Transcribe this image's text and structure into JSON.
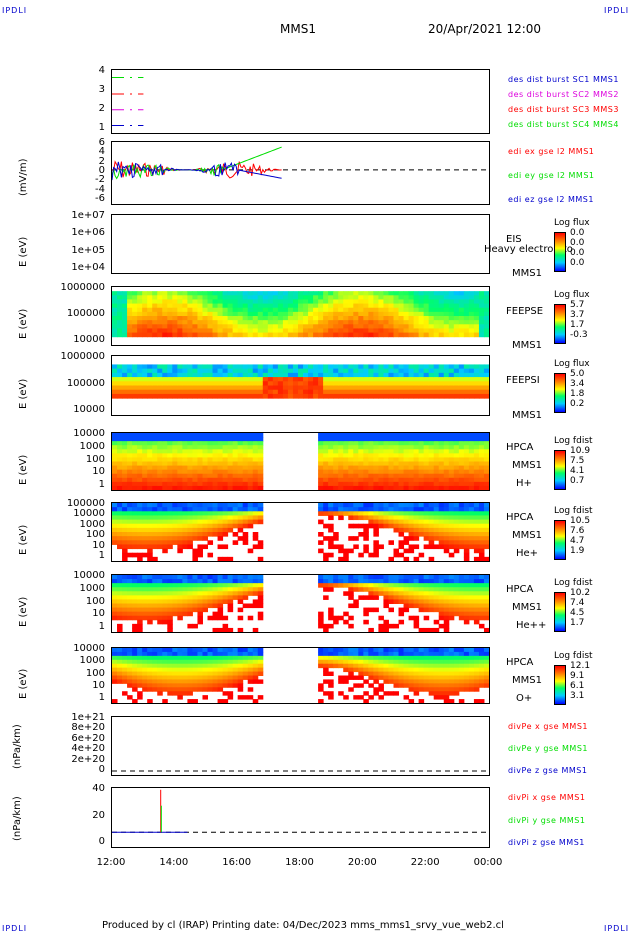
{
  "corner_tag": "IPDLI",
  "header": {
    "spacecraft": "MMS1",
    "datetime": "20/Apr/2021 12:00"
  },
  "footer": {
    "text": "Produced by cl (IRAP)   Printing date: 04/Dec/2023   mms_mms1_srvy_vue_web2.cl"
  },
  "colors": {
    "red": "#ff0000",
    "green": "#00dd00",
    "blue": "#0000cc",
    "magenta": "#dd00dd"
  },
  "chart_data": [
    {
      "type": "line",
      "panel": "availability",
      "yticks": [
        "4",
        "3",
        "2",
        "1"
      ],
      "series": [
        {
          "name": "des dist burst SC1 MMS1",
          "color": "#0000cc"
        },
        {
          "name": "des dist burst SC2 MMS2",
          "color": "#dd00dd"
        },
        {
          "name": "des dist burst SC3 MMS3",
          "color": "#ff0000"
        },
        {
          "name": "des dist burst SC4 MMS4",
          "color": "#00dd00"
        }
      ]
    },
    {
      "type": "line",
      "panel": "edi",
      "ylabel": "(mV/m)",
      "yticks": [
        "6",
        "4",
        "2",
        "0",
        "-2",
        "-4",
        "-6"
      ],
      "series": [
        {
          "name": "edi ex gse l2 MMS1",
          "color": "#ff0000"
        },
        {
          "name": "edi ey gse l2 MMS1",
          "color": "#00dd00"
        },
        {
          "name": "edi ez gse l2 MMS1",
          "color": "#0000cc"
        }
      ]
    },
    {
      "type": "heatmap",
      "panel": "EIS",
      "ylabel": "E (eV)",
      "yticks": [
        "1e+07",
        "1e+06",
        "1e+05",
        "1e+04"
      ],
      "instrument": "EIS",
      "sc": "MMS1",
      "species": "",
      "note": "Heavy electron to",
      "cbar_title": "Log flux",
      "cbar_ticks": [
        "0.0",
        "0.0",
        "0.0",
        "0.0"
      ]
    },
    {
      "type": "heatmap",
      "panel": "FEEPSE",
      "ylabel": "E (eV)",
      "yticks": [
        "1000000",
        "100000",
        "10000"
      ],
      "instrument": "FEEPSE",
      "sc": "MMS1",
      "species": "",
      "cbar_title": "Log flux",
      "cbar_ticks": [
        "5.7",
        "3.7",
        "1.7",
        "-0.3"
      ]
    },
    {
      "type": "heatmap",
      "panel": "FEEPSI",
      "ylabel": "E (eV)",
      "yticks": [
        "1000000",
        "100000",
        "10000"
      ],
      "instrument": "FEEPSI",
      "sc": "MMS1",
      "species": "",
      "cbar_title": "Log flux",
      "cbar_ticks": [
        "5.0",
        "3.4",
        "1.8",
        "0.2"
      ]
    },
    {
      "type": "heatmap",
      "panel": "HPCA_H",
      "ylabel": "E (eV)",
      "yticks": [
        "10000",
        "1000",
        "100",
        "10",
        "1"
      ],
      "instrument": "HPCA",
      "sc": "MMS1",
      "species": "H+",
      "cbar_title": "Log fdist",
      "cbar_ticks": [
        "10.9",
        "7.5",
        "4.1",
        "0.7"
      ]
    },
    {
      "type": "heatmap",
      "panel": "HPCA_He",
      "ylabel": "E (eV)",
      "yticks": [
        "100000",
        "10000",
        "1000",
        "100",
        "10",
        "1"
      ],
      "instrument": "HPCA",
      "sc": "MMS1",
      "species": "He+",
      "cbar_title": "Log fdist",
      "cbar_ticks": [
        "10.5",
        "7.6",
        "4.7",
        "1.9"
      ]
    },
    {
      "type": "heatmap",
      "panel": "HPCA_He2",
      "ylabel": "E (eV)",
      "yticks": [
        "10000",
        "1000",
        "100",
        "10",
        "1"
      ],
      "instrument": "HPCA",
      "sc": "MMS1",
      "species": "He++",
      "cbar_title": "Log fdist",
      "cbar_ticks": [
        "10.2",
        "7.4",
        "4.5",
        "1.7"
      ]
    },
    {
      "type": "heatmap",
      "panel": "HPCA_O",
      "ylabel": "E (eV)",
      "yticks": [
        "10000",
        "1000",
        "100",
        "10",
        "1"
      ],
      "instrument": "HPCA",
      "sc": "MMS1",
      "species": "O+",
      "cbar_title": "Log fdist",
      "cbar_ticks": [
        "12.1",
        "9.1",
        "6.1",
        "3.1"
      ]
    },
    {
      "type": "line",
      "panel": "divPe",
      "ylabel": "(nPa/km)",
      "yticks": [
        "1e+21",
        "8e+20",
        "6e+20",
        "4e+20",
        "2e+20",
        "0"
      ],
      "series": [
        {
          "name": "divPe x gse MMS1",
          "color": "#ff0000"
        },
        {
          "name": "divPe y gse MMS1",
          "color": "#00dd00"
        },
        {
          "name": "divPe z gse MMS1",
          "color": "#0000cc"
        }
      ]
    },
    {
      "type": "line",
      "panel": "divPi",
      "ylabel": "(nPa/km)",
      "yticks": [
        "40",
        "20",
        "0"
      ],
      "series": [
        {
          "name": "divPi x gse MMS1",
          "color": "#ff0000"
        },
        {
          "name": "divPi y gse MMS1",
          "color": "#00dd00"
        },
        {
          "name": "divPi z gse MMS1",
          "color": "#0000cc"
        }
      ]
    }
  ],
  "x_axis": {
    "ticks": [
      "12:00",
      "14:00",
      "16:00",
      "18:00",
      "20:00",
      "22:00",
      "00:00"
    ]
  }
}
